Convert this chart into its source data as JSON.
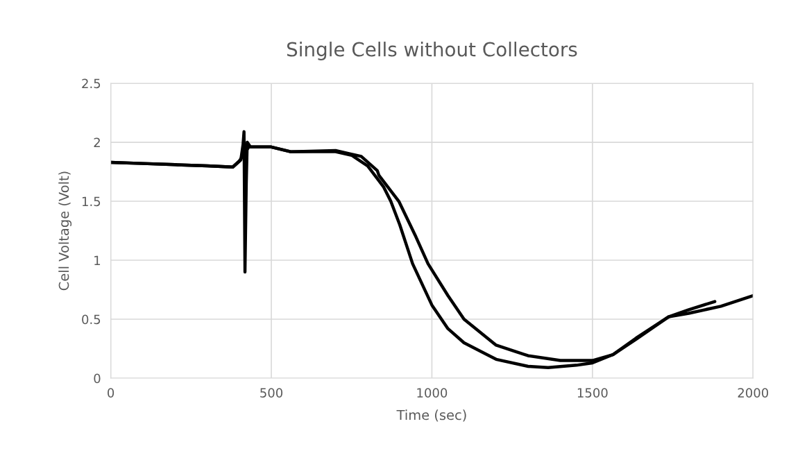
{
  "chart_data": {
    "type": "line",
    "title": "Single Cells without Collectors",
    "xlabel": "Time (sec)",
    "ylabel": "Cell Voltage (Volt)",
    "xlim": [
      0,
      2000
    ],
    "xticks": [
      0,
      500,
      1000,
      1500,
      2000
    ],
    "ylim": [
      0,
      2.5
    ],
    "yticks": [
      0,
      0.5,
      1,
      1.5,
      2,
      2.5
    ],
    "grid": true,
    "marker": "none",
    "line_style": "solid",
    "series": [
      {
        "color": "#000000",
        "x": [
          0,
          100,
          200,
          300,
          380,
          400,
          430,
          500,
          560,
          700,
          750,
          800,
          850,
          872,
          900,
          940,
          1000,
          1050,
          1100,
          1200,
          1300,
          1362,
          1450,
          1500,
          1564,
          1636,
          1737,
          1800,
          1881
        ],
        "values": [
          1.83,
          1.82,
          1.81,
          1.8,
          1.79,
          1.84,
          1.96,
          1.96,
          1.92,
          1.92,
          1.89,
          1.8,
          1.62,
          1.5,
          1.3,
          0.97,
          0.62,
          0.42,
          0.3,
          0.16,
          0.1,
          0.09,
          0.11,
          0.13,
          0.2,
          0.33,
          0.52,
          0.58,
          0.65
        ]
      },
      {
        "color": "#000000",
        "x": [
          0,
          100,
          200,
          300,
          380,
          405,
          412,
          415,
          418,
          422,
          425,
          435,
          500,
          560,
          700,
          780,
          830,
          835,
          897,
          950,
          988,
          1050,
          1100,
          1200,
          1300,
          1400,
          1500,
          1564,
          1636,
          1737,
          1800,
          1900,
          2000
        ],
        "values": [
          1.83,
          1.82,
          1.81,
          1.8,
          1.79,
          1.85,
          1.98,
          2.09,
          0.9,
          1.65,
          2.0,
          1.96,
          1.96,
          1.92,
          1.93,
          1.88,
          1.76,
          1.72,
          1.5,
          1.2,
          0.97,
          0.7,
          0.5,
          0.28,
          0.19,
          0.15,
          0.15,
          0.2,
          0.34,
          0.52,
          0.55,
          0.61,
          0.7
        ]
      }
    ]
  }
}
